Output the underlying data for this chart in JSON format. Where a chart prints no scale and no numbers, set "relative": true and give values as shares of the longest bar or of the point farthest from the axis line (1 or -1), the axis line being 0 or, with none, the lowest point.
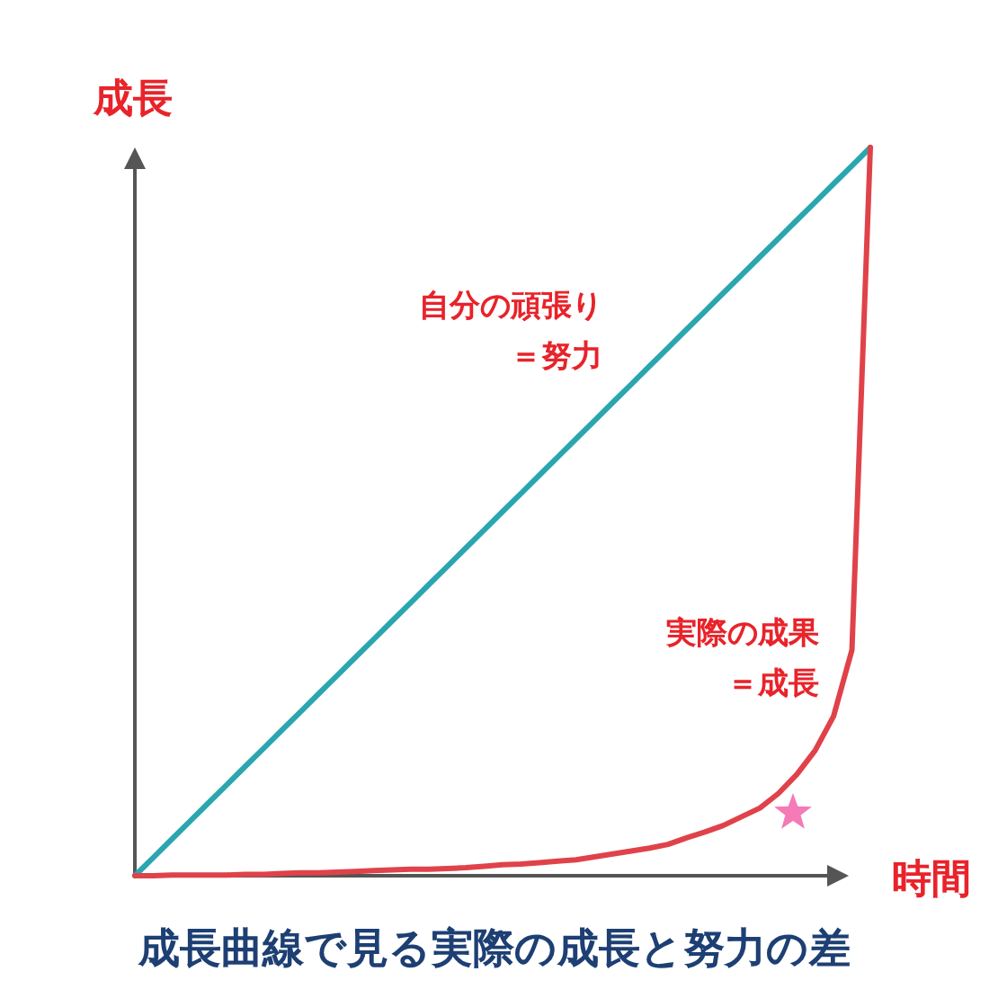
{
  "chart_data": {
    "type": "line",
    "title": "成長曲線で見る実際の成長と努力の差",
    "xlabel": "時間",
    "ylabel": "成長",
    "relative": true,
    "categories": [
      null,
      null,
      null,
      null,
      null,
      null,
      null,
      null,
      null,
      null,
      null,
      null,
      null,
      null,
      null,
      null,
      null,
      null,
      null,
      null,
      null,
      null,
      null,
      null,
      null,
      null,
      null,
      null,
      null,
      null,
      null,
      null,
      null,
      null,
      null,
      null,
      null,
      null,
      null,
      null,
      null
    ],
    "series": [
      {
        "name": "自分の頑張り＝努力",
        "color": "#2aa6b0",
        "values": [
          0,
          0.025,
          0.05,
          0.075,
          0.1,
          0.125,
          0.15,
          0.175,
          0.2,
          0.225,
          0.25,
          0.275,
          0.3,
          0.325,
          0.35,
          0.375,
          0.4,
          0.425,
          0.45,
          0.475,
          0.5,
          0.525,
          0.55,
          0.575,
          0.6,
          0.625,
          0.65,
          0.675,
          0.7,
          0.725,
          0.75,
          0.775,
          0.8,
          0.825,
          0.85,
          0.875,
          0.9,
          0.925,
          0.95,
          0.975,
          1
        ]
      },
      {
        "name": "実際の成果＝成長",
        "color": "#e0424a",
        "values": [
          0,
          0,
          0.001,
          0.001,
          0.001,
          0.001,
          0.002,
          0.002,
          0.003,
          0.004,
          0.004,
          0.005,
          0.006,
          0.007,
          0.008,
          0.009,
          0.009,
          0.01,
          0.011,
          0.013,
          0.015,
          0.016,
          0.018,
          0.02,
          0.022,
          0.026,
          0.03,
          0.034,
          0.038,
          0.043,
          0.052,
          0.06,
          0.069,
          0.081,
          0.093,
          0.113,
          0.139,
          0.172,
          0.219,
          0.31,
          1
        ]
      }
    ]
  }
}
